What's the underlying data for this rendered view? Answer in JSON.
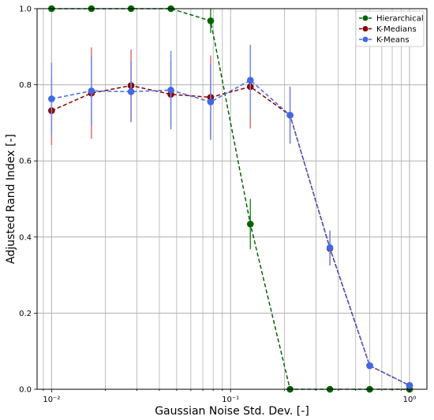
{
  "chart_data": {
    "type": "line",
    "xlabel": "Gaussian Noise Std. Dev. [-]",
    "ylabel": "Adjusted Rand Index [-]",
    "xscale": "log",
    "xlim": [
      0.0083,
      1.25
    ],
    "ylim": [
      0.0,
      1.0
    ],
    "x_ticks": [
      0.01,
      0.1,
      1
    ],
    "x_tick_labels": [
      "10⁻²",
      "10⁻¹",
      "10⁰"
    ],
    "y_ticks": [
      0.0,
      0.2,
      0.4,
      0.6,
      0.8,
      1.0
    ],
    "y_tick_labels": [
      "0.0",
      "0.2",
      "0.4",
      "0.6",
      "0.8",
      "1.0"
    ],
    "grid": true,
    "legend_position": "top-right",
    "x": [
      0.01,
      0.0167,
      0.0278,
      0.0464,
      0.0774,
      0.129,
      0.215,
      0.359,
      0.599,
      1.0
    ],
    "series": [
      {
        "name": "Hierarchical",
        "color": "#006400",
        "error_color": "#2e8b2e",
        "values": [
          1.0,
          1.0,
          1.0,
          1.0,
          0.968,
          0.434,
          0.0,
          0.0,
          0.0,
          0.0
        ],
        "errors": [
          0.0,
          0.0,
          0.0,
          0.0,
          0.032,
          0.066,
          0.0,
          0.0,
          0.0,
          0.0
        ]
      },
      {
        "name": "K-Medians",
        "color": "#8b0000",
        "error_color": "#e07070",
        "values": [
          0.732,
          0.778,
          0.798,
          0.775,
          0.767,
          0.795,
          0.72,
          0.37,
          0.062,
          0.01
        ],
        "errors": [
          0.09,
          0.12,
          0.095,
          0.085,
          0.11,
          0.11,
          0.075,
          0.045,
          0.008,
          0.004
        ]
      },
      {
        "name": "K-Means",
        "color": "#4169e1",
        "error_color": "#6f8fe8",
        "values": [
          0.763,
          0.784,
          0.782,
          0.786,
          0.755,
          0.812,
          0.72,
          0.372,
          0.062,
          0.01
        ],
        "errors": [
          0.095,
          0.09,
          0.08,
          0.103,
          0.1,
          0.09,
          0.075,
          0.045,
          0.008,
          0.004
        ]
      }
    ]
  }
}
